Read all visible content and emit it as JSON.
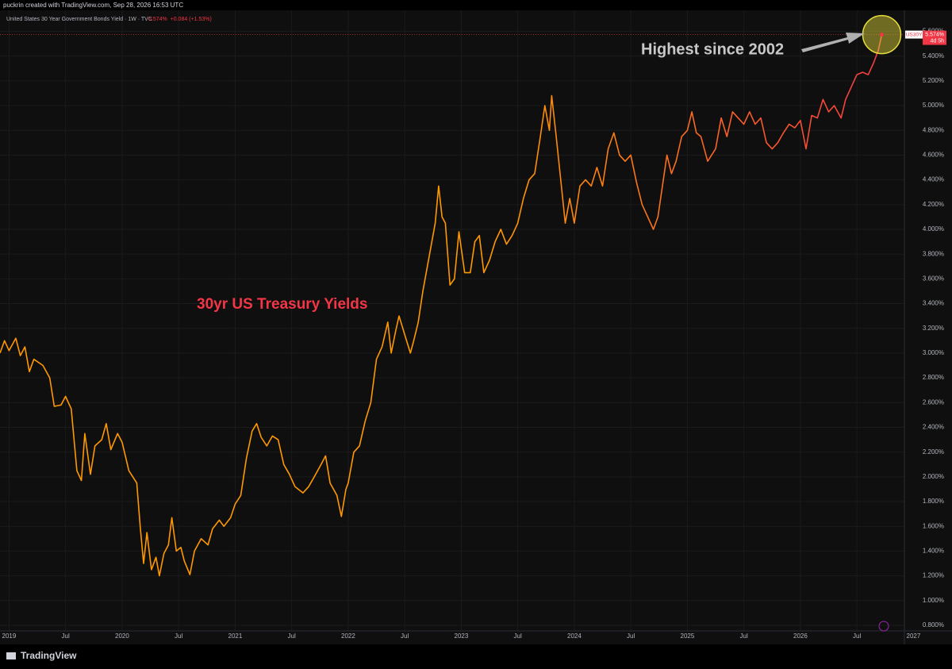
{
  "chart_data": {
    "type": "line",
    "credit": "puckrin created with TradingView.com, Sep 28, 2026 16:53 UTC",
    "instrument": "United States 30 Year Government Bonds Yield · 1W · TVC",
    "quote": "5.574%  +0.084 (+1.53%)",
    "annotations": [
      "30yr US Treasury Yields",
      "Highest since 2002"
    ],
    "footer": "TradingView",
    "price_label": {
      "symbol": "US30Y",
      "value": "5.574%",
      "countdown": "4d 5h"
    },
    "x": [
      2018.92,
      2018.96,
      2019.0,
      2019.06,
      2019.1,
      2019.14,
      2019.18,
      2019.22,
      2019.3,
      2019.36,
      2019.4,
      2019.46,
      2019.5,
      2019.55,
      2019.6,
      2019.64,
      2019.67,
      2019.72,
      2019.76,
      2019.82,
      2019.86,
      2019.9,
      2019.96,
      2020.0,
      2020.06,
      2020.13,
      2020.16,
      2020.19,
      2020.22,
      2020.26,
      2020.3,
      2020.33,
      2020.37,
      2020.41,
      2020.44,
      2020.48,
      2020.52,
      2020.55,
      2020.6,
      2020.64,
      2020.7,
      2020.76,
      2020.8,
      2020.86,
      2020.9,
      2020.96,
      2021.0,
      2021.05,
      2021.1,
      2021.15,
      2021.19,
      2021.23,
      2021.28,
      2021.33,
      2021.38,
      2021.43,
      2021.48,
      2021.53,
      2021.6,
      2021.65,
      2021.7,
      2021.76,
      2021.8,
      2021.84,
      2021.9,
      2021.94,
      2021.98,
      2022.0,
      2022.05,
      2022.1,
      2022.15,
      2022.2,
      2022.25,
      2022.3,
      2022.35,
      2022.38,
      2022.42,
      2022.45,
      2022.5,
      2022.55,
      2022.58,
      2022.62,
      2022.66,
      2022.72,
      2022.77,
      2022.8,
      2022.83,
      2022.86,
      2022.9,
      2022.94,
      2022.98,
      2023.03,
      2023.08,
      2023.12,
      2023.16,
      2023.2,
      2023.25,
      2023.3,
      2023.35,
      2023.4,
      2023.45,
      2023.5,
      2023.55,
      2023.6,
      2023.65,
      2023.7,
      2023.74,
      2023.78,
      2023.8,
      2023.84,
      2023.88,
      2023.92,
      2023.96,
      2024.0,
      2024.05,
      2024.1,
      2024.15,
      2024.2,
      2024.25,
      2024.3,
      2024.35,
      2024.4,
      2024.45,
      2024.5,
      2024.55,
      2024.6,
      2024.65,
      2024.7,
      2024.74,
      2024.78,
      2024.82,
      2024.86,
      2024.9,
      2024.95,
      2025.0,
      2025.04,
      2025.08,
      2025.12,
      2025.18,
      2025.25,
      2025.3,
      2025.35,
      2025.4,
      2025.45,
      2025.5,
      2025.55,
      2025.6,
      2025.65,
      2025.7,
      2025.75,
      2025.8,
      2025.85,
      2025.9,
      2025.95,
      2026.0,
      2026.05,
      2026.1,
      2026.15,
      2026.2,
      2026.25,
      2026.3,
      2026.36,
      2026.4,
      2026.45,
      2026.5,
      2026.55,
      2026.6,
      2026.65,
      2026.69,
      2026.72
    ],
    "series": [
      {
        "name": "US30Y",
        "color": "#ff9800",
        "color_end": "#f23645",
        "values": [
          3.0,
          3.1,
          3.02,
          3.12,
          2.98,
          3.05,
          2.85,
          2.95,
          2.9,
          2.8,
          2.57,
          2.58,
          2.65,
          2.55,
          2.05,
          1.97,
          2.35,
          2.02,
          2.25,
          2.3,
          2.43,
          2.22,
          2.35,
          2.28,
          2.05,
          1.95,
          1.6,
          1.3,
          1.55,
          1.25,
          1.35,
          1.2,
          1.38,
          1.45,
          1.67,
          1.4,
          1.43,
          1.32,
          1.21,
          1.4,
          1.5,
          1.45,
          1.58,
          1.65,
          1.6,
          1.67,
          1.78,
          1.85,
          2.15,
          2.37,
          2.43,
          2.32,
          2.25,
          2.33,
          2.3,
          2.1,
          2.02,
          1.92,
          1.87,
          1.92,
          2.0,
          2.1,
          2.17,
          1.95,
          1.85,
          1.68,
          1.9,
          1.95,
          2.2,
          2.25,
          2.45,
          2.6,
          2.95,
          3.05,
          3.25,
          3.0,
          3.18,
          3.3,
          3.15,
          3.0,
          3.1,
          3.25,
          3.5,
          3.8,
          4.05,
          4.35,
          4.1,
          4.05,
          3.55,
          3.6,
          3.98,
          3.65,
          3.65,
          3.9,
          3.95,
          3.65,
          3.75,
          3.9,
          4.0,
          3.88,
          3.95,
          4.05,
          4.25,
          4.4,
          4.45,
          4.75,
          5.0,
          4.8,
          5.08,
          4.75,
          4.4,
          4.05,
          4.25,
          4.05,
          4.35,
          4.4,
          4.35,
          4.5,
          4.35,
          4.65,
          4.78,
          4.6,
          4.55,
          4.6,
          4.38,
          4.2,
          4.1,
          4.0,
          4.1,
          4.35,
          4.6,
          4.45,
          4.55,
          4.75,
          4.8,
          4.95,
          4.78,
          4.75,
          4.55,
          4.65,
          4.9,
          4.75,
          4.95,
          4.9,
          4.85,
          4.95,
          4.85,
          4.9,
          4.7,
          4.65,
          4.7,
          4.78,
          4.85,
          4.82,
          4.88,
          4.65,
          4.92,
          4.9,
          5.05,
          4.95,
          5.0,
          4.9,
          5.05,
          5.15,
          5.25,
          5.27,
          5.25,
          5.35,
          5.45,
          5.574
        ]
      }
    ],
    "xlim": [
      2018.92,
      2026.92
    ],
    "ylim": [
      0.755,
      5.77
    ],
    "xticks": [
      {
        "value": 2019,
        "label": "2019"
      },
      {
        "value": 2019.5,
        "label": "Jul"
      },
      {
        "value": 2020,
        "label": "2020"
      },
      {
        "value": 2020.5,
        "label": "Jul"
      },
      {
        "value": 2021,
        "label": "2021"
      },
      {
        "value": 2021.5,
        "label": "Jul"
      },
      {
        "value": 2022,
        "label": "2022"
      },
      {
        "value": 2022.5,
        "label": "Jul"
      },
      {
        "value": 2023,
        "label": "2023"
      },
      {
        "value": 2023.5,
        "label": "Jul"
      },
      {
        "value": 2024,
        "label": "2024"
      },
      {
        "value": 2024.5,
        "label": "Jul"
      },
      {
        "value": 2025,
        "label": "2025"
      },
      {
        "value": 2025.5,
        "label": "Jul"
      },
      {
        "value": 2026,
        "label": "2026"
      },
      {
        "value": 2026.5,
        "label": "Jul"
      },
      {
        "value": 2027,
        "label": "2027"
      }
    ],
    "yticks": [
      {
        "value": 0.8,
        "label": "0.800%"
      },
      {
        "value": 1.0,
        "label": "1.000%"
      },
      {
        "value": 1.2,
        "label": "1.200%"
      },
      {
        "value": 1.4,
        "label": "1.400%"
      },
      {
        "value": 1.6,
        "label": "1.600%"
      },
      {
        "value": 1.8,
        "label": "1.800%"
      },
      {
        "value": 2.0,
        "label": "2.000%"
      },
      {
        "value": 2.2,
        "label": "2.200%"
      },
      {
        "value": 2.4,
        "label": "2.400%"
      },
      {
        "value": 2.6,
        "label": "2.600%"
      },
      {
        "value": 2.8,
        "label": "2.800%"
      },
      {
        "value": 3.0,
        "label": "3.000%"
      },
      {
        "value": 3.2,
        "label": "3.200%"
      },
      {
        "value": 3.4,
        "label": "3.400%"
      },
      {
        "value": 3.6,
        "label": "3.600%"
      },
      {
        "value": 3.8,
        "label": "3.800%"
      },
      {
        "value": 4.0,
        "label": "4.000%"
      },
      {
        "value": 4.2,
        "label": "4.200%"
      },
      {
        "value": 4.4,
        "label": "4.400%"
      },
      {
        "value": 4.6,
        "label": "4.600%"
      },
      {
        "value": 4.8,
        "label": "4.800%"
      },
      {
        "value": 5.0,
        "label": "5.000%"
      },
      {
        "value": 5.2,
        "label": "5.200%"
      },
      {
        "value": 5.4,
        "label": "5.400%"
      },
      {
        "value": 5.6,
        "label": "5.600%"
      }
    ],
    "grid": true
  }
}
